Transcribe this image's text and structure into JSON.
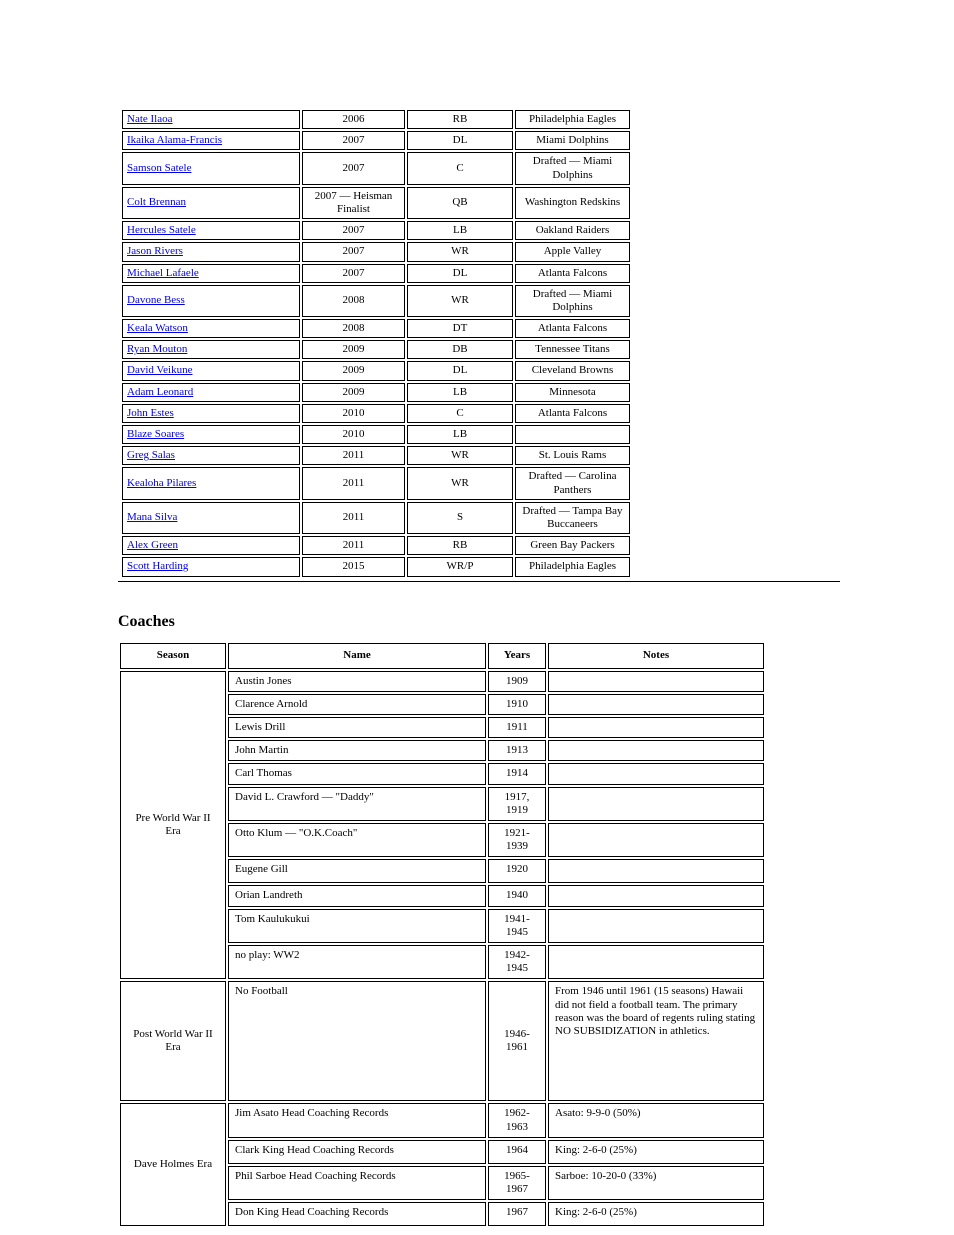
{
  "upperTable": {
    "rows": [
      {
        "name": "Nate Ilaoa",
        "c2": "2006",
        "c3": "RB",
        "c4": "Philadelphia Eagles"
      },
      {
        "name": "Ikaika Alama-Francis",
        "c2": "2007",
        "c3": "DL",
        "c4": "Miami Dolphins"
      },
      {
        "name": "Samson Satele",
        "c2": "2007",
        "c3": "C",
        "c4": "Drafted — Miami Dolphins"
      },
      {
        "name": "Colt Brennan",
        "c2": "2007 — Heisman Finalist",
        "c3": "QB",
        "c4": "Washington Redskins"
      },
      {
        "name": "Hercules Satele",
        "c2": "2007",
        "c3": "LB",
        "c4": "Oakland Raiders"
      },
      {
        "name": "Jason Rivers",
        "c2": "2007",
        "c3": "WR",
        "c4": "Apple Valley"
      },
      {
        "name": "Michael Lafaele",
        "c2": "2007",
        "c3": "DL",
        "c4": "Atlanta Falcons"
      },
      {
        "name": "Davone Bess",
        "c2": "2008",
        "c3": "WR",
        "c4": "Drafted — Miami Dolphins"
      },
      {
        "name": "Keala Watson",
        "c2": "2008",
        "c3": "DT",
        "c4": "Atlanta Falcons"
      },
      {
        "name": "Ryan Mouton",
        "c2": "2009",
        "c3": "DB",
        "c4": "Tennessee Titans"
      },
      {
        "name": "David Veikune",
        "c2": "2009",
        "c3": "DL",
        "c4": "Cleveland Browns"
      },
      {
        "name": "Adam Leonard",
        "c2": "2009",
        "c3": "LB",
        "c4": "Minnesota"
      },
      {
        "name": "John Estes",
        "c2": "2010",
        "c3": "C",
        "c4": "Atlanta Falcons"
      },
      {
        "name": "Blaze Soares",
        "c2": "2010",
        "c3": "LB",
        "c4": ""
      },
      {
        "name": "Greg Salas",
        "c2": "2011",
        "c3": "WR",
        "c4": "St. Louis Rams"
      },
      {
        "name": "Kealoha Pilares",
        "c2": "2011",
        "c3": "WR",
        "c4": "Drafted — Carolina Panthers"
      },
      {
        "name": "Mana Silva",
        "c2": "2011",
        "c3": "S",
        "c4": "Drafted — Tampa Bay Buccaneers"
      },
      {
        "name": "Alex Green",
        "c2": "2011",
        "c3": "RB",
        "c4": "Green Bay Packers"
      },
      {
        "name": "Scott Harding",
        "c2": "2015",
        "c3": "WR/P",
        "c4": "Philadelphia Eagles"
      }
    ]
  },
  "coachesHeading": "Coaches",
  "lowerTable": {
    "headers": {
      "season": "Season",
      "name": "Name",
      "years": "Years",
      "notes": "Notes"
    },
    "groups": [
      {
        "season": "Pre World War II Era",
        "rows": [
          {
            "name": "Austin Jones",
            "years": "1909",
            "notes": ""
          },
          {
            "name": "Clarence Arnold",
            "years": "1910",
            "notes": ""
          },
          {
            "name": "Lewis Drill",
            "years": "1911",
            "notes": ""
          },
          {
            "name": "John Martin",
            "years": "1913",
            "notes": ""
          },
          {
            "name": "Carl Thomas",
            "years": "1914",
            "notes": ""
          },
          {
            "name": "David L. Crawford — \"Daddy\"",
            "years": "1917, 1919",
            "notes": ""
          },
          {
            "name": "Otto Klum — \"O.K.Coach\"",
            "years": "1921-1939",
            "notes": "",
            "med": true
          },
          {
            "name": "Eugene Gill",
            "years": "1920",
            "notes": "",
            "med": true
          },
          {
            "name": "Orian Landreth",
            "years": "1940",
            "notes": ""
          },
          {
            "name": "Tom Kaulukukui",
            "years": "1941-1945",
            "notes": ""
          },
          {
            "name": "no play: WW2",
            "years": "1942-1945",
            "notes": ""
          }
        ]
      },
      {
        "season": "Post World War II Era",
        "tall": true,
        "rows": [
          {
            "name": "No Football",
            "years": "1946-1961",
            "notes": "From 1946 until 1961 (15 seasons) Hawaii did not field a football team. The primary reason was the board of regents ruling stating NO SUBSIDIZATION in athletics."
          }
        ]
      },
      {
        "season": "Dave Holmes Era",
        "rows": [
          {
            "name": "Jim Asato Head Coaching Records",
            "years": "1962-1963",
            "notes": "Asato: 9-9-0 (50%)",
            "med": true
          },
          {
            "name": "Clark King Head Coaching Records",
            "years": "1964",
            "notes": "King: 2-6-0 (25%)",
            "med": true
          },
          {
            "name": "Phil Sarboe Head Coaching Records",
            "years": "1965-1967",
            "notes": "Sarboe: 10-20-0 (33%)",
            "med": true
          },
          {
            "name": "Don King Head Coaching Records",
            "years": "1967",
            "notes": "King: 2-6-0 (25%)",
            "med": true
          }
        ]
      }
    ]
  }
}
